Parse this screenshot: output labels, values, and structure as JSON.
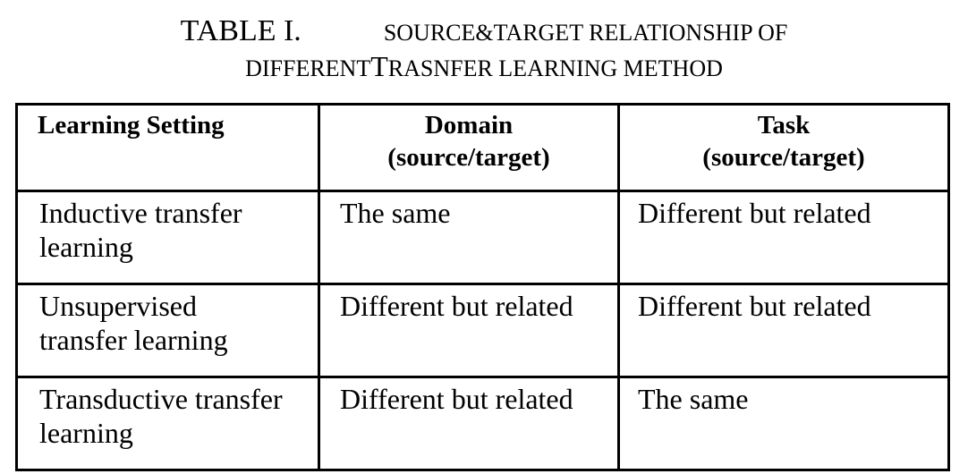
{
  "caption": {
    "label": "TABLE I.",
    "line1": "SOURCE&TARGET RELATIONSHIP OF",
    "line2_part1": "DIFFERENT",
    "line2_part2": "T",
    "line2_part3": "RASNFER LEARNING METHOD"
  },
  "table": {
    "headers": [
      {
        "line1": "Learning  Setting",
        "line2": ""
      },
      {
        "line1": "Domain",
        "line2": "(source/target)"
      },
      {
        "line1": "Task",
        "line2": "(source/target)"
      }
    ],
    "rows": [
      {
        "setting_line1": "Inductive transfer",
        "setting_line2": "learning",
        "domain": "The same",
        "task": "Different  but related"
      },
      {
        "setting_line1": "Unsupervised",
        "setting_line2": "transfer learning",
        "domain": "Different  but related",
        "task": "Different  but related"
      },
      {
        "setting_line1": "Transductive transfer",
        "setting_line2": "learning",
        "domain": "Different  but related",
        "task": "The same"
      }
    ]
  }
}
